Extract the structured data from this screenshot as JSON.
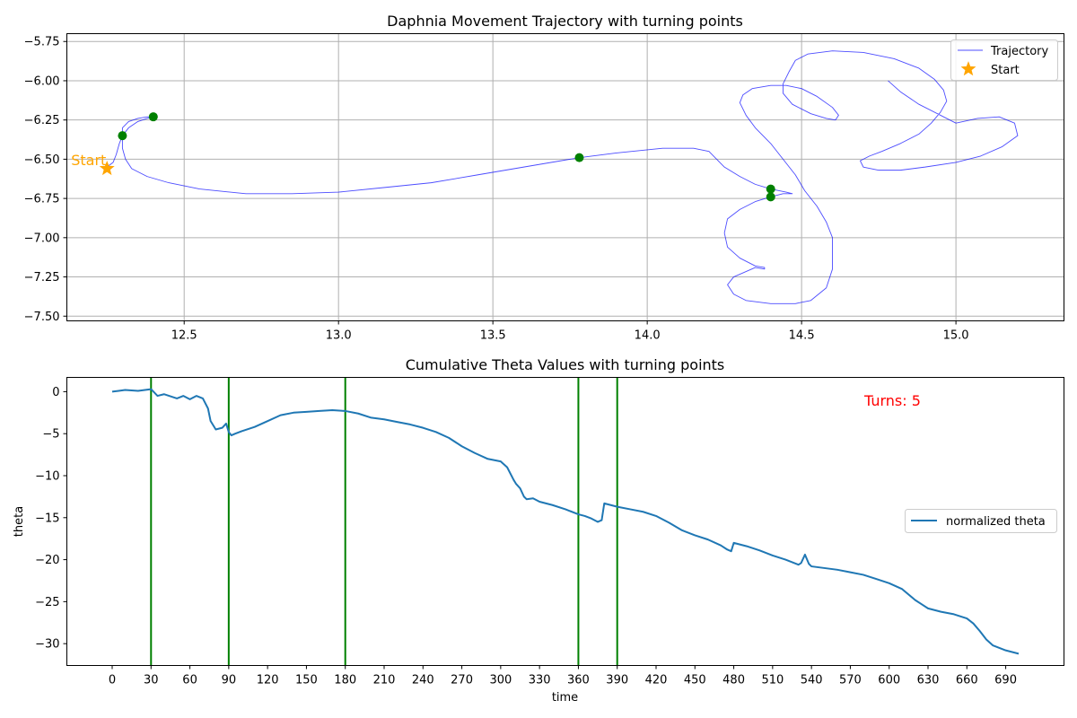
{
  "chart_data": [
    {
      "type": "line",
      "title": "Daphnia Movement Trajectory with turning points",
      "xlabel": "",
      "ylabel": "",
      "xlim": [
        12.12,
        15.35
      ],
      "ylim": [
        -7.53,
        -5.7
      ],
      "xticks": [
        12.5,
        13.0,
        13.5,
        14.0,
        14.5,
        15.0
      ],
      "yticks": [
        -7.5,
        -7.25,
        -7.0,
        -6.75,
        -6.5,
        -6.25,
        -6.0,
        -5.75
      ],
      "grid": true,
      "legend": {
        "position": "upper right",
        "entries": [
          "Trajectory",
          "Start"
        ]
      },
      "colors": {
        "trajectory": "#0000ff",
        "start": "#ffa500",
        "turning_points": "#008000"
      },
      "start": {
        "x": 12.25,
        "y": -6.56,
        "label": "Start"
      },
      "turning_points": [
        {
          "x": 12.3,
          "y": -6.35
        },
        {
          "x": 12.4,
          "y": -6.23
        },
        {
          "x": 13.78,
          "y": -6.49
        },
        {
          "x": 14.4,
          "y": -6.69
        },
        {
          "x": 14.4,
          "y": -6.74
        }
      ],
      "series": [
        {
          "name": "Trajectory",
          "x": [
            12.25,
            12.27,
            12.28,
            12.29,
            12.3,
            12.3,
            12.32,
            12.35,
            12.38,
            12.4,
            12.38,
            12.35,
            12.32,
            12.3,
            12.3,
            12.31,
            12.33,
            12.38,
            12.45,
            12.55,
            12.7,
            12.85,
            13.0,
            13.15,
            13.3,
            13.45,
            13.6,
            13.78,
            13.9,
            14.05,
            14.15,
            14.2,
            14.22,
            14.25,
            14.3,
            14.35,
            14.4,
            14.45,
            14.47,
            14.44,
            14.4,
            14.35,
            14.3,
            14.26,
            14.25,
            14.26,
            14.3,
            14.35,
            14.38,
            14.38,
            14.35,
            14.28,
            14.26,
            14.28,
            14.32,
            14.4,
            14.48,
            14.53,
            14.58,
            14.6,
            14.6,
            14.58,
            14.55,
            14.51,
            14.48,
            14.44,
            14.4,
            14.35,
            14.32,
            14.3,
            14.31,
            14.34,
            14.4,
            14.45,
            14.5,
            14.55,
            14.6,
            14.62,
            14.61,
            14.58,
            14.53,
            14.47,
            14.44,
            14.44,
            14.46,
            14.48,
            14.52,
            14.6,
            14.7,
            14.8,
            14.88,
            14.93,
            14.96,
            14.97,
            14.95,
            14.92,
            14.88,
            14.82,
            14.76,
            14.72,
            14.69,
            14.7,
            14.75,
            14.82,
            14.9,
            15.0,
            15.08,
            15.15,
            15.2,
            15.19,
            15.14,
            15.07,
            15.0,
            14.95,
            14.88,
            14.82,
            14.78
          ],
          "y": [
            -6.55,
            -6.52,
            -6.47,
            -6.4,
            -6.35,
            -6.3,
            -6.26,
            -6.24,
            -6.23,
            -6.23,
            -6.24,
            -6.26,
            -6.3,
            -6.35,
            -6.43,
            -6.5,
            -6.56,
            -6.61,
            -6.65,
            -6.69,
            -6.72,
            -6.72,
            -6.71,
            -6.68,
            -6.65,
            -6.6,
            -6.55,
            -6.49,
            -6.46,
            -6.43,
            -6.43,
            -6.45,
            -6.49,
            -6.55,
            -6.61,
            -6.66,
            -6.69,
            -6.71,
            -6.72,
            -6.72,
            -6.74,
            -6.77,
            -6.82,
            -6.88,
            -6.97,
            -7.06,
            -7.13,
            -7.18,
            -7.19,
            -7.2,
            -7.19,
            -7.25,
            -7.3,
            -7.36,
            -7.4,
            -7.42,
            -7.42,
            -7.4,
            -7.32,
            -7.2,
            -7.0,
            -6.9,
            -6.8,
            -6.7,
            -6.6,
            -6.5,
            -6.4,
            -6.3,
            -6.22,
            -6.14,
            -6.09,
            -6.05,
            -6.03,
            -6.03,
            -6.05,
            -6.1,
            -6.17,
            -6.22,
            -6.25,
            -6.24,
            -6.21,
            -6.15,
            -6.08,
            -6.02,
            -5.94,
            -5.87,
            -5.83,
            -5.81,
            -5.82,
            -5.86,
            -5.92,
            -5.99,
            -6.06,
            -6.13,
            -6.2,
            -6.27,
            -6.34,
            -6.4,
            -6.45,
            -6.48,
            -6.51,
            -6.55,
            -6.57,
            -6.57,
            -6.55,
            -6.52,
            -6.48,
            -6.42,
            -6.35,
            -6.27,
            -6.23,
            -6.24,
            -6.27,
            -6.22,
            -6.15,
            -6.07,
            -6.0
          ]
        }
      ]
    },
    {
      "type": "line",
      "title": "Cumulative Theta Values with turning points",
      "xlabel": "time",
      "ylabel": "theta",
      "xlim": [
        -35,
        735
      ],
      "ylim": [
        -32.6,
        1.7
      ],
      "xticks": [
        0,
        30,
        60,
        90,
        120,
        150,
        180,
        210,
        240,
        270,
        300,
        330,
        360,
        390,
        420,
        450,
        480,
        510,
        540,
        570,
        600,
        630,
        660,
        690
      ],
      "yticks": [
        0,
        -5,
        -10,
        -15,
        -20,
        -25,
        -30
      ],
      "grid": false,
      "legend": {
        "position": "center right",
        "entries": [
          "normalized theta"
        ]
      },
      "colors": {
        "line": "#1f77b4",
        "turning_lines": "#008000",
        "annotation": "#ff0000"
      },
      "turning_times": [
        30,
        90,
        180,
        360,
        390
      ],
      "annotation": "Turns: 5",
      "series": [
        {
          "name": "normalized theta",
          "x": [
            0,
            5,
            10,
            20,
            30,
            35,
            40,
            50,
            55,
            60,
            65,
            70,
            74,
            76,
            80,
            85,
            88,
            90,
            92,
            95,
            100,
            110,
            120,
            130,
            140,
            150,
            160,
            170,
            180,
            190,
            200,
            210,
            220,
            230,
            240,
            250,
            260,
            270,
            280,
            290,
            300,
            305,
            310,
            312,
            315,
            318,
            320,
            325,
            330,
            340,
            350,
            360,
            365,
            370,
            375,
            378,
            380,
            385,
            390,
            400,
            410,
            420,
            430,
            440,
            450,
            460,
            470,
            475,
            478,
            480,
            485,
            490,
            500,
            510,
            520,
            530,
            532,
            535,
            538,
            540,
            550,
            560,
            570,
            580,
            590,
            600,
            610,
            620,
            625,
            630,
            640,
            650,
            660,
            665,
            670,
            675,
            680,
            690,
            700
          ],
          "y": [
            0,
            0.1,
            0.2,
            0.1,
            0.3,
            -0.5,
            -0.3,
            -0.8,
            -0.5,
            -0.9,
            -0.5,
            -0.8,
            -2.0,
            -3.5,
            -4.5,
            -4.3,
            -3.8,
            -4.8,
            -5.2,
            -5.0,
            -4.7,
            -4.2,
            -3.5,
            -2.8,
            -2.5,
            -2.4,
            -2.3,
            -2.2,
            -2.3,
            -2.6,
            -3.1,
            -3.3,
            -3.6,
            -3.9,
            -4.3,
            -4.8,
            -5.5,
            -6.5,
            -7.3,
            -8.0,
            -8.3,
            -9.0,
            -10.5,
            -11.0,
            -11.5,
            -12.5,
            -12.8,
            -12.7,
            -13.1,
            -13.5,
            -14.0,
            -14.6,
            -14.8,
            -15.1,
            -15.5,
            -15.3,
            -13.3,
            -13.5,
            -13.7,
            -14.0,
            -14.3,
            -14.8,
            -15.6,
            -16.5,
            -17.1,
            -17.6,
            -18.3,
            -18.8,
            -19.0,
            -18.0,
            -18.2,
            -18.4,
            -18.9,
            -19.5,
            -20.0,
            -20.6,
            -20.4,
            -19.4,
            -20.5,
            -20.8,
            -21.0,
            -21.2,
            -21.5,
            -21.8,
            -22.3,
            -22.8,
            -23.5,
            -24.8,
            -25.3,
            -25.8,
            -26.2,
            -26.5,
            -27.0,
            -27.6,
            -28.5,
            -29.5,
            -30.2,
            -30.8,
            -31.2
          ]
        }
      ]
    }
  ]
}
